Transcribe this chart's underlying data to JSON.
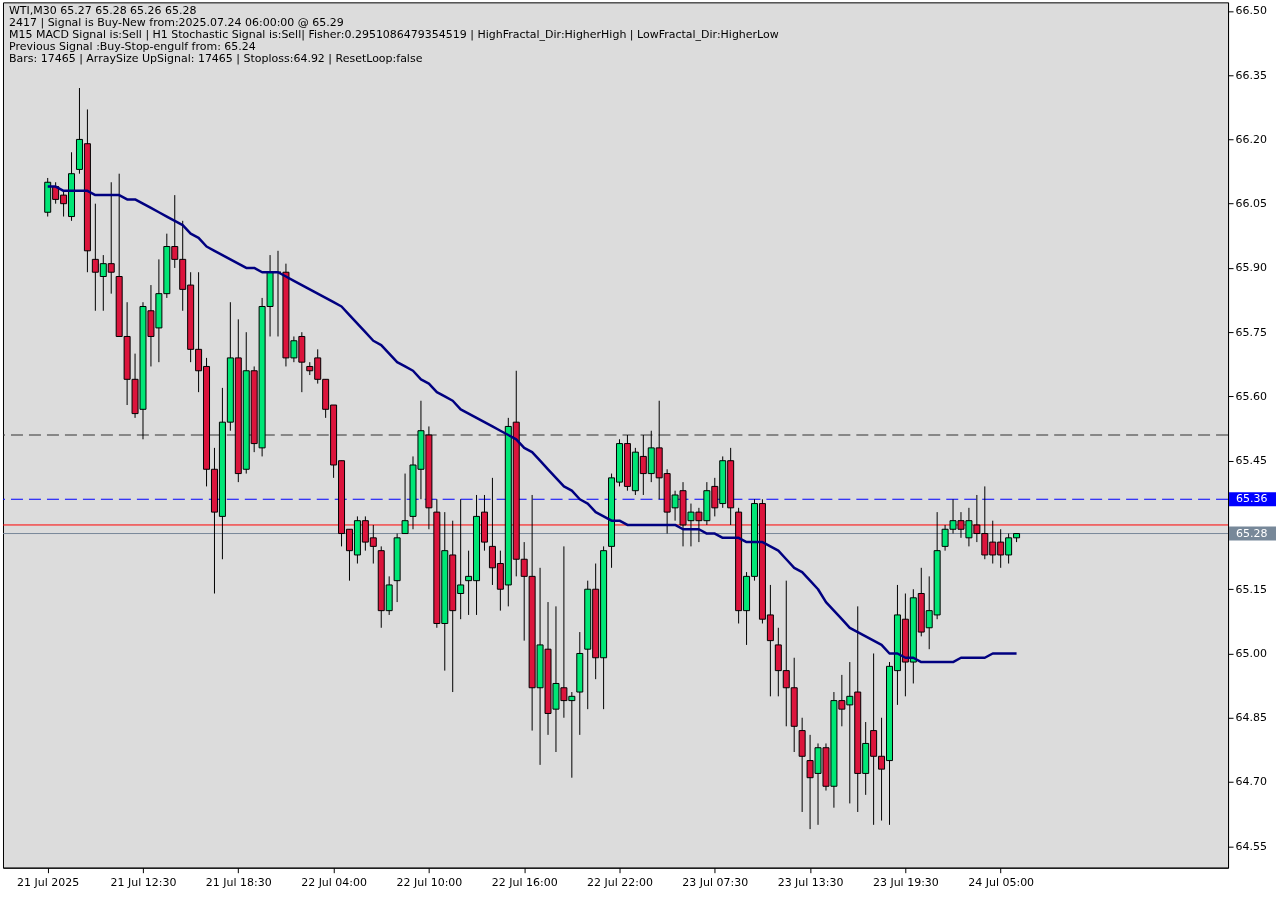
{
  "chart_data": {
    "type": "candlestick",
    "title": "WTI,M30  65.27 65.28 65.26 65.28",
    "annotations": [
      "2417 | Signal is Buy-New from:2025.07.24 06:00:00 @ 65.29",
      "M15 MACD Signal is:Sell | H1 Stochastic Signal is:Sell| Fisher:0.2951086479354519 | HighFractal_Dir:HigherHigh | LowFractal_Dir:HigherLow",
      "Previous Signal :Buy-Stop-engulf from: 65.24",
      "Bars: 17465 | ArraySize UpSignal: 17465 | Stoploss:64.92 | ResetLoop:false"
    ],
    "categories": [
      "21 Jul 2025",
      null,
      null,
      null,
      null,
      null,
      null,
      null,
      null,
      null,
      null,
      null,
      "21 Jul 12:30",
      null,
      null,
      null,
      null,
      null,
      null,
      null,
      null,
      null,
      null,
      null,
      "21 Jul 18:30",
      null,
      null,
      null,
      null,
      null,
      null,
      null,
      null,
      null,
      null,
      null,
      "22 Jul 04:00",
      null,
      null,
      null,
      null,
      null,
      null,
      null,
      null,
      null,
      null,
      null,
      "22 Jul 10:00",
      null,
      null,
      null,
      null,
      null,
      null,
      null,
      null,
      null,
      null,
      null,
      "22 Jul 16:00",
      null,
      null,
      null,
      null,
      null,
      null,
      null,
      null,
      null,
      null,
      null,
      "22 Jul 22:00",
      null,
      null,
      null,
      null,
      null,
      null,
      null,
      null,
      null,
      null,
      null,
      "23 Jul 07:30",
      null,
      null,
      null,
      null,
      null,
      null,
      null,
      null,
      null,
      null,
      null,
      "23 Jul 13:30",
      null,
      null,
      null,
      null,
      null,
      null,
      null,
      null,
      null,
      null,
      null,
      "23 Jul 19:30",
      null,
      null,
      null,
      null,
      null,
      null,
      null,
      null,
      null,
      null,
      null,
      "24 Jul 05:00",
      null,
      null
    ],
    "ohlc": [
      [
        66.03,
        66.11,
        66.02,
        66.1
      ],
      [
        66.09,
        66.1,
        66.05,
        66.06
      ],
      [
        66.07,
        66.08,
        66.02,
        66.05
      ],
      [
        66.02,
        66.17,
        66.01,
        66.12
      ],
      [
        66.13,
        66.32,
        66.12,
        66.2
      ],
      [
        66.19,
        66.27,
        65.89,
        65.94
      ],
      [
        65.92,
        66.05,
        65.8,
        65.89
      ],
      [
        65.88,
        65.93,
        65.8,
        65.91
      ],
      [
        65.91,
        66.1,
        65.84,
        65.89
      ],
      [
        65.88,
        66.12,
        65.74,
        65.74
      ],
      [
        65.74,
        65.82,
        65.58,
        65.64
      ],
      [
        65.64,
        65.7,
        65.55,
        65.56
      ],
      [
        65.57,
        65.82,
        65.5,
        65.81
      ],
      [
        65.8,
        65.86,
        65.67,
        65.74
      ],
      [
        65.76,
        65.92,
        65.68,
        65.84
      ],
      [
        65.84,
        65.98,
        65.83,
        65.95
      ],
      [
        65.95,
        66.07,
        65.9,
        65.92
      ],
      [
        65.92,
        66.01,
        65.8,
        65.85
      ],
      [
        65.86,
        65.89,
        65.68,
        65.71
      ],
      [
        65.71,
        65.89,
        65.61,
        65.66
      ],
      [
        65.67,
        65.69,
        65.39,
        65.43
      ],
      [
        65.43,
        65.48,
        65.14,
        65.33
      ],
      [
        65.32,
        65.62,
        65.22,
        65.54
      ],
      [
        65.54,
        65.82,
        65.52,
        65.69
      ],
      [
        65.69,
        65.78,
        65.4,
        65.42
      ],
      [
        65.43,
        65.75,
        65.42,
        65.66
      ],
      [
        65.66,
        65.67,
        65.47,
        65.49
      ],
      [
        65.48,
        65.83,
        65.46,
        65.81
      ],
      [
        65.81,
        65.93,
        65.74,
        65.89
      ],
      [
        65.89,
        65.94,
        65.74,
        65.89
      ],
      [
        65.89,
        65.91,
        65.67,
        65.69
      ],
      [
        65.69,
        65.74,
        65.68,
        65.73
      ],
      [
        65.74,
        65.75,
        65.61,
        65.68
      ],
      [
        65.67,
        65.68,
        65.65,
        65.66
      ],
      [
        65.69,
        65.71,
        65.63,
        65.64
      ],
      [
        65.64,
        65.64,
        65.55,
        65.57
      ],
      [
        65.58,
        65.58,
        65.41,
        65.44
      ],
      [
        65.45,
        65.45,
        65.25,
        65.28
      ],
      [
        65.29,
        65.29,
        65.17,
        65.24
      ],
      [
        65.23,
        65.32,
        65.21,
        65.31
      ],
      [
        65.31,
        65.32,
        65.24,
        65.26
      ],
      [
        65.27,
        65.3,
        65.21,
        65.25
      ],
      [
        65.24,
        65.25,
        65.06,
        65.1
      ],
      [
        65.1,
        65.18,
        65.09,
        65.16
      ],
      [
        65.17,
        65.28,
        65.12,
        65.27
      ],
      [
        65.28,
        65.42,
        65.28,
        65.31
      ],
      [
        65.32,
        65.46,
        65.29,
        65.44
      ],
      [
        65.43,
        65.59,
        65.36,
        65.52
      ],
      [
        65.51,
        65.53,
        65.29,
        65.34
      ],
      [
        65.33,
        65.36,
        65.06,
        65.07
      ],
      [
        65.07,
        65.33,
        64.96,
        65.24
      ],
      [
        65.23,
        65.31,
        64.91,
        65.1
      ],
      [
        65.14,
        65.36,
        65.08,
        65.16
      ],
      [
        65.17,
        65.24,
        65.09,
        65.18
      ],
      [
        65.17,
        65.37,
        65.09,
        65.32
      ],
      [
        65.33,
        65.37,
        65.24,
        65.26
      ],
      [
        65.25,
        65.41,
        65.16,
        65.2
      ],
      [
        65.21,
        65.24,
        65.1,
        65.15
      ],
      [
        65.16,
        65.55,
        65.11,
        65.53
      ],
      [
        65.54,
        65.66,
        65.18,
        65.22
      ],
      [
        65.22,
        65.26,
        65.03,
        65.18
      ],
      [
        65.18,
        65.37,
        64.82,
        64.92
      ],
      [
        64.92,
        65.2,
        64.74,
        65.02
      ],
      [
        65.01,
        65.12,
        64.81,
        64.86
      ],
      [
        64.87,
        65.11,
        64.77,
        64.93
      ],
      [
        64.92,
        65.25,
        64.85,
        64.89
      ],
      [
        64.89,
        64.91,
        64.71,
        64.9
      ],
      [
        64.91,
        65.05,
        64.81,
        65.0
      ],
      [
        65.01,
        65.17,
        64.87,
        65.15
      ],
      [
        65.15,
        65.21,
        64.94,
        64.99
      ],
      [
        64.99,
        65.25,
        64.87,
        65.24
      ],
      [
        65.25,
        65.42,
        65.2,
        65.41
      ],
      [
        65.4,
        65.5,
        65.39,
        65.49
      ],
      [
        65.49,
        65.51,
        65.38,
        65.39
      ],
      [
        65.38,
        65.48,
        65.37,
        65.47
      ],
      [
        65.46,
        65.51,
        65.37,
        65.42
      ],
      [
        65.42,
        65.52,
        65.4,
        65.48
      ],
      [
        65.48,
        65.59,
        65.36,
        65.41
      ],
      [
        65.42,
        65.43,
        65.28,
        65.33
      ],
      [
        65.34,
        65.38,
        65.31,
        65.37
      ],
      [
        65.38,
        65.4,
        65.25,
        65.3
      ],
      [
        65.31,
        65.35,
        65.25,
        65.33
      ],
      [
        65.33,
        65.34,
        65.26,
        65.31
      ],
      [
        65.31,
        65.4,
        65.3,
        65.38
      ],
      [
        65.39,
        65.41,
        65.32,
        65.34
      ],
      [
        65.35,
        65.46,
        65.34,
        65.45
      ],
      [
        65.45,
        65.48,
        65.3,
        65.34
      ],
      [
        65.33,
        65.34,
        65.07,
        65.1
      ],
      [
        65.1,
        65.19,
        65.02,
        65.18
      ],
      [
        65.18,
        65.36,
        65.17,
        65.35
      ],
      [
        65.35,
        65.36,
        65.07,
        65.08
      ],
      [
        65.09,
        65.16,
        64.9,
        65.03
      ],
      [
        65.02,
        65.06,
        64.9,
        64.96
      ],
      [
        64.96,
        65.17,
        64.83,
        64.92
      ],
      [
        64.92,
        64.99,
        64.77,
        64.83
      ],
      [
        64.82,
        64.85,
        64.63,
        64.76
      ],
      [
        64.75,
        64.81,
        64.59,
        64.71
      ],
      [
        64.72,
        64.79,
        64.6,
        64.78
      ],
      [
        64.78,
        64.79,
        64.68,
        64.69
      ],
      [
        64.69,
        64.91,
        64.64,
        64.89
      ],
      [
        64.89,
        64.95,
        64.83,
        64.87
      ],
      [
        64.88,
        64.98,
        64.65,
        64.9
      ],
      [
        64.91,
        65.11,
        64.63,
        64.72
      ],
      [
        64.72,
        64.84,
        64.67,
        64.79
      ],
      [
        64.82,
        65.0,
        64.6,
        64.76
      ],
      [
        64.76,
        64.85,
        64.61,
        64.73
      ],
      [
        64.75,
        64.98,
        64.6,
        64.97
      ],
      [
        64.96,
        65.16,
        64.88,
        65.09
      ],
      [
        65.08,
        65.14,
        64.9,
        64.98
      ],
      [
        64.98,
        65.15,
        64.93,
        65.13
      ],
      [
        65.14,
        65.2,
        65.04,
        65.05
      ],
      [
        65.06,
        65.18,
        65.01,
        65.1
      ],
      [
        65.09,
        65.33,
        65.08,
        65.24
      ],
      [
        65.25,
        65.3,
        65.24,
        65.29
      ],
      [
        65.29,
        65.36,
        65.28,
        65.31
      ],
      [
        65.31,
        65.33,
        65.27,
        65.29
      ],
      [
        65.27,
        65.34,
        65.25,
        65.31
      ],
      [
        65.3,
        65.37,
        65.26,
        65.28
      ],
      [
        65.28,
        65.39,
        65.22,
        65.23
      ],
      [
        65.26,
        65.31,
        65.21,
        65.23
      ],
      [
        65.26,
        65.29,
        65.2,
        65.23
      ],
      [
        65.23,
        65.28,
        65.21,
        65.27
      ],
      [
        65.27,
        65.28,
        65.26,
        65.28
      ]
    ],
    "series": [
      {
        "type": "line",
        "color": "#000080",
        "values": [
          66.09,
          66.09,
          66.08,
          66.08,
          66.08,
          66.08,
          66.07,
          66.07,
          66.07,
          66.07,
          66.06,
          66.06,
          66.05,
          66.04,
          66.03,
          66.02,
          66.01,
          66.0,
          65.98,
          65.97,
          65.95,
          65.94,
          65.93,
          65.92,
          65.91,
          65.9,
          65.9,
          65.89,
          65.89,
          65.89,
          65.88,
          65.87,
          65.86,
          65.85,
          65.84,
          65.83,
          65.82,
          65.81,
          65.79,
          65.77,
          65.75,
          65.73,
          65.72,
          65.7,
          65.68,
          65.67,
          65.66,
          65.64,
          65.63,
          65.61,
          65.6,
          65.59,
          65.57,
          65.56,
          65.55,
          65.54,
          65.53,
          65.52,
          65.51,
          65.5,
          65.48,
          65.47,
          65.45,
          65.43,
          65.41,
          65.39,
          65.38,
          65.36,
          65.35,
          65.33,
          65.32,
          65.31,
          65.31,
          65.3,
          65.3,
          65.3,
          65.3,
          65.3,
          65.3,
          65.3,
          65.29,
          65.29,
          65.29,
          65.28,
          65.28,
          65.27,
          65.27,
          65.27,
          65.26,
          65.26,
          65.26,
          65.25,
          65.24,
          65.22,
          65.2,
          65.19,
          65.17,
          65.15,
          65.12,
          65.1,
          65.08,
          65.06,
          65.05,
          65.04,
          65.03,
          65.02,
          65.0,
          65.0,
          64.99,
          64.99,
          64.98,
          64.98,
          64.98,
          64.98,
          64.98,
          64.99,
          64.99,
          64.99,
          64.99,
          65.0,
          65.0,
          65.0,
          65.0
        ]
      }
    ],
    "ylim": [
      64.5,
      66.52
    ],
    "yticks": [
      64.55,
      {
        "value": 64.7,
        "label": "64.70"
      },
      64.85,
      {
        "value": 65,
        "label": "65.00"
      },
      65.15,
      65.45,
      {
        "value": 65.6,
        "label": "65.60"
      },
      65.75,
      {
        "value": 65.9,
        "label": "65.90"
      },
      66.05,
      {
        "value": 66.2,
        "label": "66.20"
      },
      66.35,
      {
        "value": 66.5,
        "label": "66.50"
      }
    ],
    "ref_lines": [
      {
        "axis": "y",
        "value": 65.36,
        "label": "65.36",
        "color": "#0000ff",
        "line_style": "dashed"
      },
      {
        "axis": "y",
        "value": 65.3,
        "color": "#ff0000",
        "line_style": "solid"
      },
      {
        "axis": "y",
        "value": 65.28,
        "label": "65.28",
        "color": "#778899",
        "line_style": "solid"
      },
      {
        "axis": "y",
        "value": 65.51,
        "color": "#333333",
        "line_style": "dashed"
      }
    ],
    "grid": false,
    "legend": false
  }
}
